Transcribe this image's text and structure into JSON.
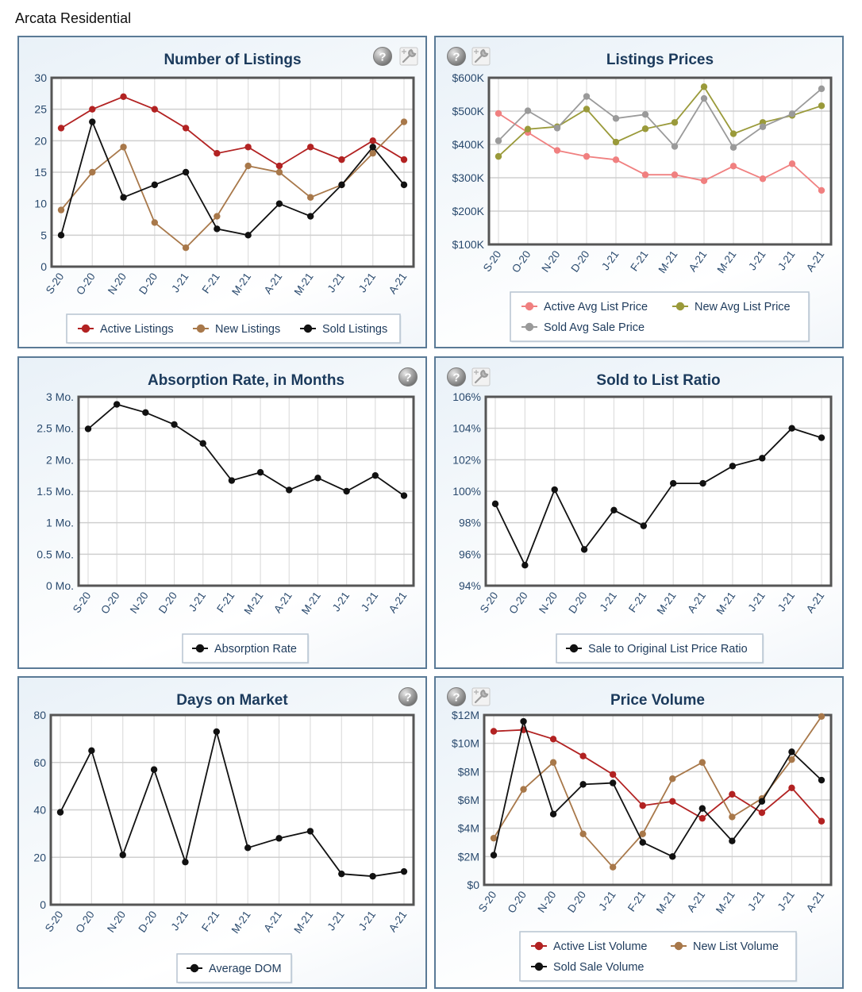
{
  "page": {
    "title": "Arcata Residential"
  },
  "icons": {
    "help": "help-icon",
    "settings": "wrench-settings-icon"
  },
  "chart_data": [
    {
      "id": "listings",
      "type": "line",
      "title": "Number of Listings",
      "xlabel": "",
      "ylabel": "",
      "categories": [
        "S-20",
        "O-20",
        "N-20",
        "D-20",
        "J-21",
        "F-21",
        "M-21",
        "A-21",
        "M-21",
        "J-21",
        "J-21",
        "A-21"
      ],
      "ylim": [
        0,
        30
      ],
      "yticks": [
        0,
        5,
        10,
        15,
        20,
        25,
        30
      ],
      "ytick_labels": [
        "0",
        "5",
        "10",
        "15",
        "20",
        "25",
        "30"
      ],
      "grid": true,
      "legend_position": "bottom",
      "icons": [
        "help",
        "settings"
      ],
      "icons_side": "right",
      "series": [
        {
          "name": "Active Listings",
          "color": "#b22222",
          "values": [
            22,
            25,
            27,
            25,
            22,
            18,
            19,
            16,
            19,
            17,
            20,
            17
          ]
        },
        {
          "name": "New Listings",
          "color": "#a8784a",
          "values": [
            9,
            15,
            19,
            7,
            3,
            8,
            16,
            15,
            11,
            13,
            18,
            23
          ]
        },
        {
          "name": "Sold Listings",
          "color": "#111111",
          "values": [
            5,
            23,
            11,
            13,
            15,
            6,
            5,
            10,
            8,
            13,
            19,
            13
          ]
        }
      ]
    },
    {
      "id": "prices",
      "type": "line",
      "title": "Listings Prices",
      "xlabel": "",
      "ylabel": "",
      "categories": [
        "S-20",
        "O-20",
        "N-20",
        "D-20",
        "J-21",
        "F-21",
        "M-21",
        "A-21",
        "M-21",
        "J-21",
        "J-21",
        "A-21"
      ],
      "ylim": [
        100000,
        600000
      ],
      "yticks": [
        100000,
        200000,
        300000,
        400000,
        500000,
        600000
      ],
      "ytick_labels": [
        "$100K",
        "$200K",
        "$300K",
        "$400K",
        "$500K",
        "$600K"
      ],
      "grid": true,
      "legend_position": "bottom",
      "icons": [
        "help",
        "settings"
      ],
      "icons_side": "left",
      "series": [
        {
          "name": "Active Avg List Price",
          "color": "#f08080",
          "values": [
            493000,
            436000,
            382000,
            364000,
            354000,
            309000,
            309000,
            291000,
            335000,
            297000,
            342000,
            262000
          ]
        },
        {
          "name": "New Avg List Price",
          "color": "#9a9a3a",
          "values": [
            364000,
            446000,
            453000,
            506000,
            407000,
            447000,
            466000,
            573000,
            432000,
            466000,
            487000,
            516000
          ]
        },
        {
          "name": "Sold Avg Sale Price",
          "color": "#9a9a9a",
          "values": [
            411000,
            501000,
            449000,
            544000,
            478000,
            490000,
            394000,
            538000,
            391000,
            453000,
            492000,
            567000
          ]
        }
      ]
    },
    {
      "id": "absorption",
      "type": "line",
      "title": "Absorption Rate, in Months",
      "xlabel": "",
      "ylabel": "",
      "categories": [
        "S-20",
        "O-20",
        "N-20",
        "D-20",
        "J-21",
        "F-21",
        "M-21",
        "A-21",
        "M-21",
        "J-21",
        "J-21",
        "A-21"
      ],
      "ylim": [
        0,
        3
      ],
      "yticks": [
        0,
        0.5,
        1,
        1.5,
        2,
        2.5,
        3
      ],
      "ytick_labels": [
        "0 Mo.",
        "0.5 Mo.",
        "1 Mo.",
        "1.5 Mo.",
        "2 Mo.",
        "2.5 Mo.",
        "3 Mo."
      ],
      "grid": true,
      "legend_position": "bottom",
      "icons": [
        "help"
      ],
      "icons_side": "right",
      "series": [
        {
          "name": "Absorption Rate",
          "color": "#111111",
          "values": [
            2.49,
            2.88,
            2.75,
            2.56,
            2.26,
            1.67,
            1.8,
            1.52,
            1.71,
            1.5,
            1.75,
            1.43
          ]
        }
      ]
    },
    {
      "id": "ratio",
      "type": "line",
      "title": "Sold to List Ratio",
      "xlabel": "",
      "ylabel": "",
      "categories": [
        "S-20",
        "O-20",
        "N-20",
        "D-20",
        "J-21",
        "F-21",
        "M-21",
        "A-21",
        "M-21",
        "J-21",
        "J-21",
        "A-21"
      ],
      "ylim": [
        94,
        106
      ],
      "yticks": [
        94,
        96,
        98,
        100,
        102,
        104,
        106
      ],
      "ytick_labels": [
        "94%",
        "96%",
        "98%",
        "100%",
        "102%",
        "104%",
        "106%"
      ],
      "grid": true,
      "legend_position": "bottom",
      "icons": [
        "help",
        "settings"
      ],
      "icons_side": "left",
      "series": [
        {
          "name": "Sale to Original List Price Ratio",
          "color": "#111111",
          "values": [
            99.2,
            95.3,
            100.1,
            96.3,
            98.8,
            97.8,
            100.5,
            100.5,
            101.6,
            102.1,
            104.0,
            103.4
          ]
        }
      ]
    },
    {
      "id": "dom",
      "type": "line",
      "title": "Days on Market",
      "xlabel": "",
      "ylabel": "",
      "categories": [
        "S-20",
        "O-20",
        "N-20",
        "D-20",
        "J-21",
        "F-21",
        "M-21",
        "A-21",
        "M-21",
        "J-21",
        "J-21",
        "A-21"
      ],
      "ylim": [
        0,
        80
      ],
      "yticks": [
        0,
        20,
        40,
        60,
        80
      ],
      "ytick_labels": [
        "0",
        "20",
        "40",
        "60",
        "80"
      ],
      "grid": true,
      "legend_position": "bottom",
      "icons": [
        "help"
      ],
      "icons_side": "right",
      "series": [
        {
          "name": "Average DOM",
          "color": "#111111",
          "values": [
            39,
            65,
            21,
            57,
            18,
            73,
            24,
            28,
            31,
            13,
            12,
            14
          ]
        }
      ]
    },
    {
      "id": "volume",
      "type": "line",
      "title": "Price Volume",
      "xlabel": "",
      "ylabel": "",
      "categories": [
        "S-20",
        "O-20",
        "N-20",
        "D-20",
        "J-21",
        "F-21",
        "M-21",
        "A-21",
        "M-21",
        "J-21",
        "J-21",
        "A-21"
      ],
      "ylim": [
        0,
        12000000
      ],
      "yticks": [
        0,
        2000000,
        4000000,
        6000000,
        8000000,
        10000000,
        12000000
      ],
      "ytick_labels": [
        "$0",
        "$2M",
        "$4M",
        "$6M",
        "$8M",
        "$10M",
        "$12M"
      ],
      "grid": true,
      "legend_position": "bottom",
      "icons": [
        "help",
        "settings"
      ],
      "icons_side": "left",
      "series": [
        {
          "name": "Active List Volume",
          "color": "#b22222",
          "values": [
            10850000,
            10950000,
            10300000,
            9100000,
            7800000,
            5600000,
            5900000,
            4700000,
            6400000,
            5100000,
            6850000,
            4500000
          ]
        },
        {
          "name": "New List Volume",
          "color": "#a8784a",
          "values": [
            3300000,
            6750000,
            8650000,
            3600000,
            1250000,
            3600000,
            7500000,
            8650000,
            4800000,
            6100000,
            8850000,
            11900000
          ]
        },
        {
          "name": "Sold Sale Volume",
          "color": "#111111",
          "values": [
            2100000,
            11550000,
            5000000,
            7100000,
            7200000,
            3000000,
            2000000,
            5400000,
            3100000,
            5900000,
            9400000,
            7400000
          ]
        }
      ]
    }
  ]
}
